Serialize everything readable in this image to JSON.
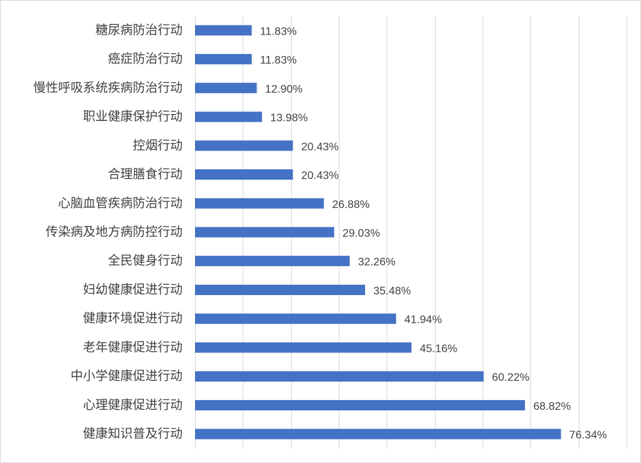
{
  "chart_data": {
    "type": "bar",
    "orientation": "horizontal",
    "title": "",
    "xlabel": "",
    "ylabel": "",
    "xlim": [
      0,
      90
    ],
    "grid": true,
    "legend": "none",
    "bar_color": "#4472c4",
    "categories": [
      "糖尿病防治行动",
      "癌症防治行动",
      "慢性呼吸系统疾病防治行动",
      "职业健康保护行动",
      "控烟行动",
      "合理膳食行动",
      "心脑血管疾病防治行动",
      "传染病及地方病防控行动",
      "全民健身行动",
      "妇幼健康促进行动",
      "健康环境促进行动",
      "老年健康促进行动",
      "中小学健康促进行动",
      "心理健康促进行动",
      "健康知识普及行动"
    ],
    "values": [
      11.83,
      11.83,
      12.9,
      13.98,
      20.43,
      20.43,
      26.88,
      29.03,
      32.26,
      35.48,
      41.94,
      45.16,
      60.22,
      68.82,
      76.34
    ],
    "data_labels": [
      "11.83%",
      "11.83%",
      "12.90%",
      "13.98%",
      "20.43%",
      "20.43%",
      "26.88%",
      "29.03%",
      "32.26%",
      "35.48%",
      "41.94%",
      "45.16%",
      "60.22%",
      "68.82%",
      "76.34%"
    ]
  }
}
